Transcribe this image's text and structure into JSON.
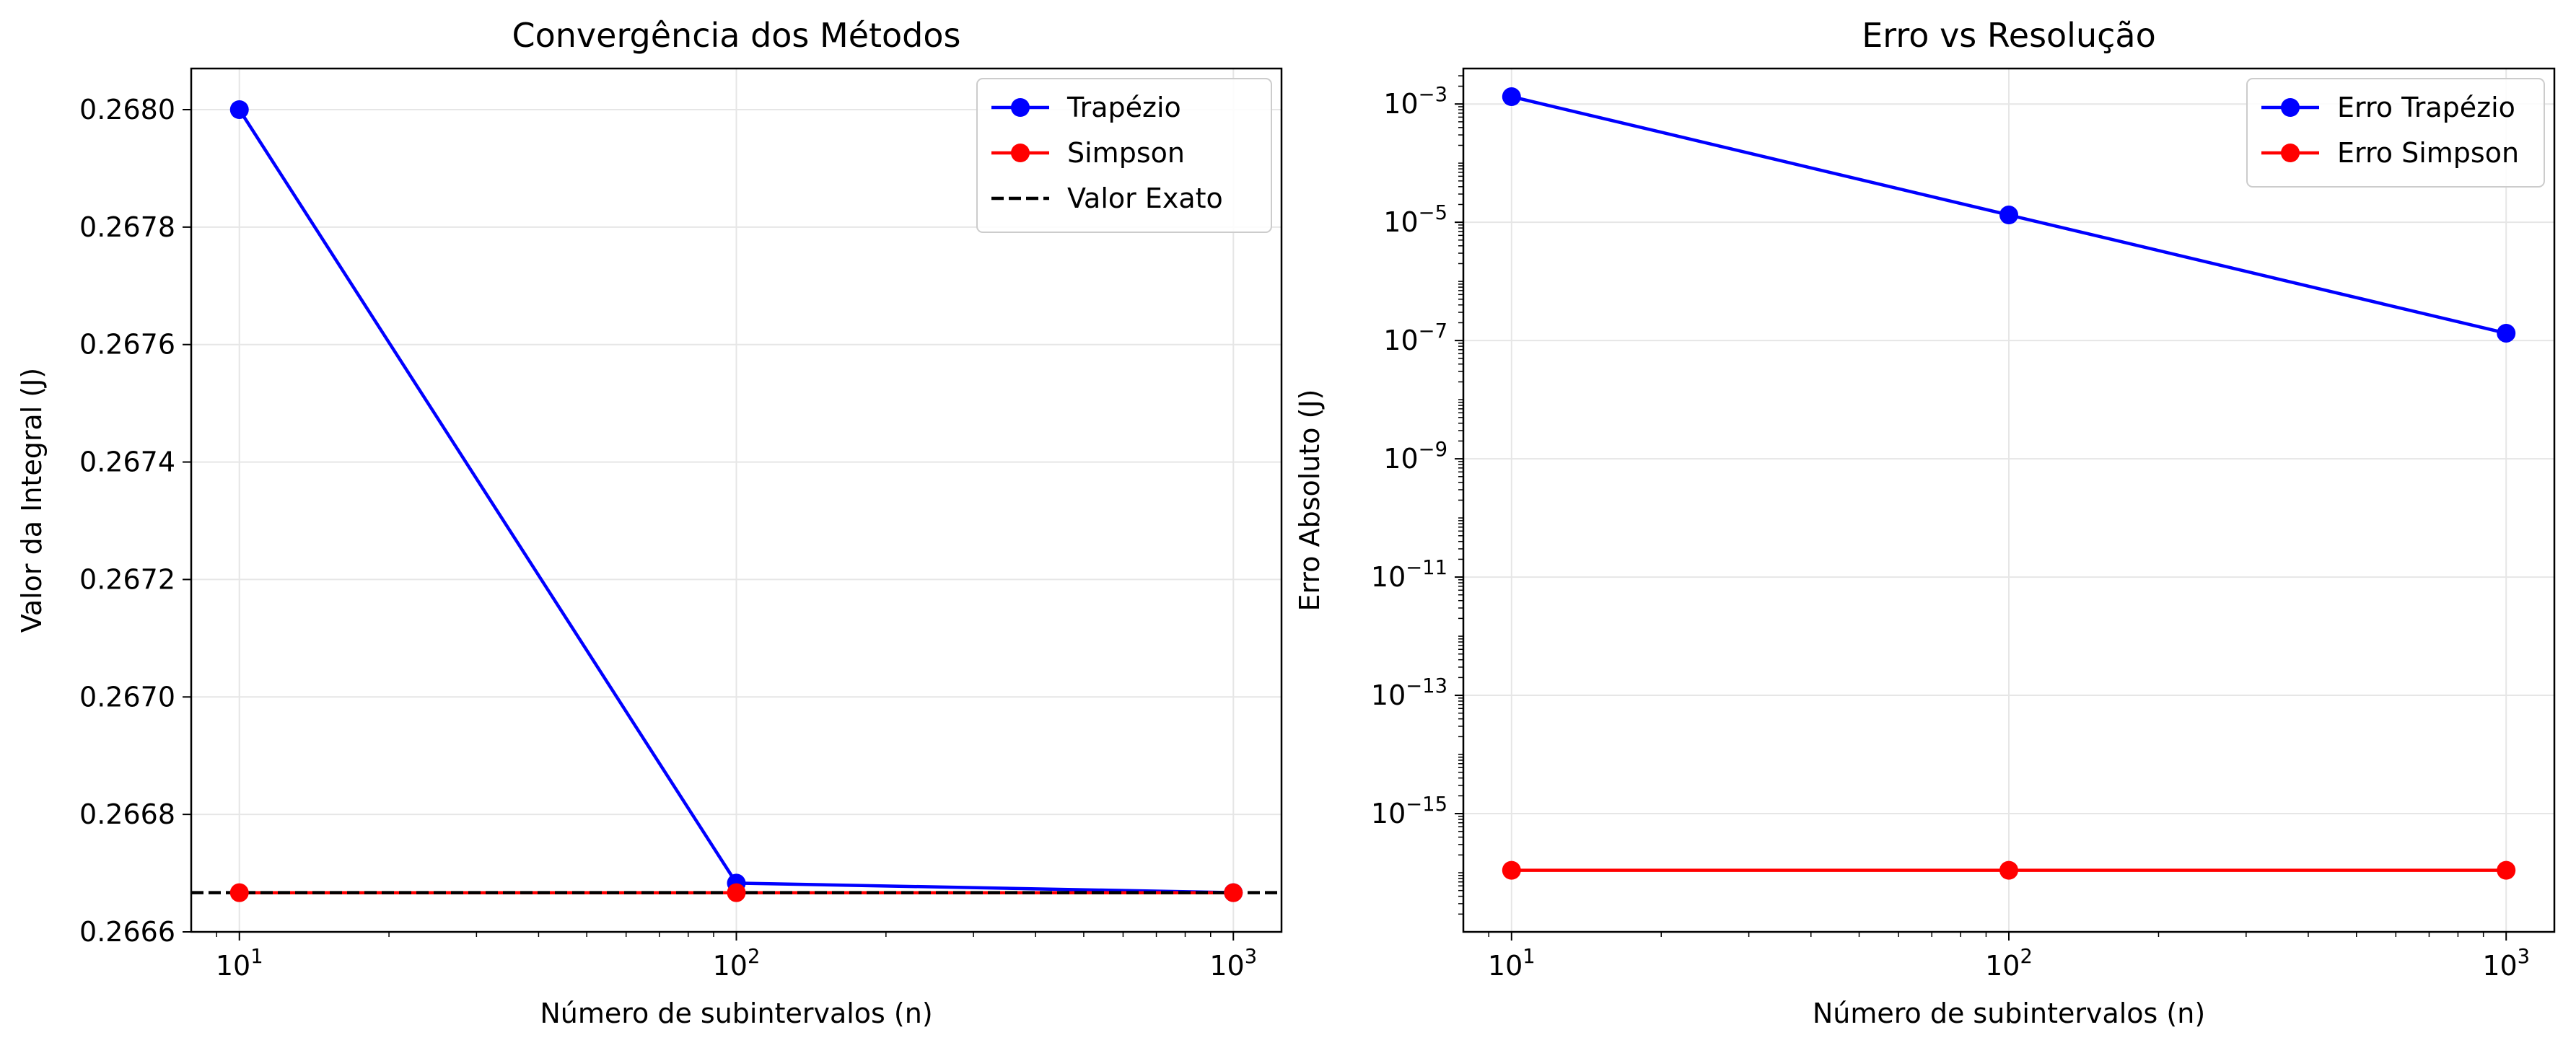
{
  "chart_data": [
    {
      "type": "line",
      "title": "Convergência dos Métodos",
      "xlabel": "Número de subintervalos (n)",
      "ylabel": "Valor da Integral (J)",
      "xscale": "log",
      "yscale": "linear",
      "xlim": [
        8,
        1250
      ],
      "ylim": [
        0.2666,
        0.26807
      ],
      "x_ticks": [
        {
          "value": 10,
          "base": "10",
          "exp": "1"
        },
        {
          "value": 100,
          "base": "10",
          "exp": "2"
        },
        {
          "value": 1000,
          "base": "10",
          "exp": "3"
        }
      ],
      "y_ticks": [
        {
          "value": 0.2666,
          "label": "0.2666"
        },
        {
          "value": 0.2668,
          "label": "0.2668"
        },
        {
          "value": 0.267,
          "label": "0.2670"
        },
        {
          "value": 0.2672,
          "label": "0.2672"
        },
        {
          "value": 0.2674,
          "label": "0.2674"
        },
        {
          "value": 0.2676,
          "label": "0.2676"
        },
        {
          "value": 0.2678,
          "label": "0.2678"
        },
        {
          "value": 0.268,
          "label": "0.2680"
        }
      ],
      "grid": true,
      "legend_position": "top-right",
      "series": [
        {
          "name": "Trapézio",
          "color": "#0000ff",
          "style": "line-marker",
          "x": [
            10,
            100,
            1000
          ],
          "y": [
            0.268,
            0.266683,
            0.2666668
          ]
        },
        {
          "name": "Simpson",
          "color": "#ff0000",
          "style": "line-marker",
          "x": [
            10,
            100,
            1000
          ],
          "y": [
            0.2666667,
            0.2666667,
            0.2666667
          ]
        },
        {
          "name": "Valor Exato",
          "color": "#000000",
          "style": "hline-dashed",
          "y": 0.2666667
        }
      ]
    },
    {
      "type": "line",
      "title": "Erro vs Resolução",
      "xlabel": "Número de subintervalos (n)",
      "ylabel": "Erro Absoluto (J)",
      "xscale": "log",
      "yscale": "log",
      "xlim": [
        8,
        1250
      ],
      "ylim_log10": [
        -17.0,
        -2.4
      ],
      "x_ticks": [
        {
          "value": 10,
          "base": "10",
          "exp": "1"
        },
        {
          "value": 100,
          "base": "10",
          "exp": "2"
        },
        {
          "value": 1000,
          "base": "10",
          "exp": "3"
        }
      ],
      "y_ticks": [
        {
          "value": 1e-15,
          "base": "10",
          "exp": "−15"
        },
        {
          "value": 1e-13,
          "base": "10",
          "exp": "−13"
        },
        {
          "value": 1e-11,
          "base": "10",
          "exp": "−11"
        },
        {
          "value": 1e-09,
          "base": "10",
          "exp": "−9"
        },
        {
          "value": 1e-07,
          "base": "10",
          "exp": "−7"
        },
        {
          "value": 1e-05,
          "base": "10",
          "exp": "−5"
        },
        {
          "value": 0.001,
          "base": "10",
          "exp": "−3"
        }
      ],
      "grid": true,
      "legend_position": "top-right",
      "series": [
        {
          "name": "Erro Trapézio",
          "color": "#0000ff",
          "style": "line-marker",
          "x": [
            10,
            100,
            1000
          ],
          "y": [
            0.00133,
            1.33e-05,
            1.33e-07
          ]
        },
        {
          "name": "Erro Simpson",
          "color": "#ff0000",
          "style": "line-marker",
          "x": [
            10,
            100,
            1000
          ],
          "y": [
            1.1e-16,
            1.1e-16,
            1.1e-16
          ]
        }
      ]
    }
  ]
}
